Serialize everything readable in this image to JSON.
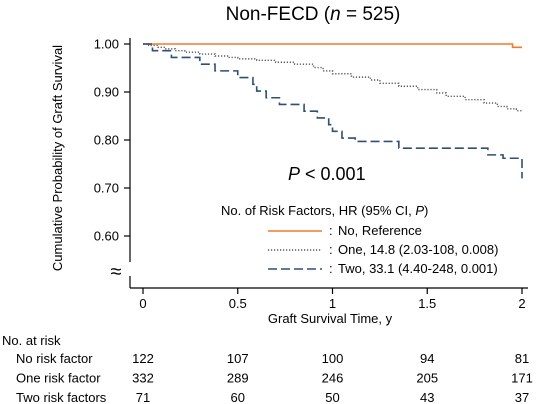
{
  "chart_data": {
    "type": "line",
    "subtype": "kaplan-meier",
    "title_prefix": "Non-FECD (",
    "title_n": "n",
    "title_suffix": " = 525)",
    "xlabel": "Graft Survival Time, y",
    "ylabel": "Cumulative Probability of Graft Survival",
    "xlim": [
      0,
      2
    ],
    "ylim": [
      0.55,
      1.0
    ],
    "xticks": [
      {
        "v": 0,
        "label": "0"
      },
      {
        "v": 0.5,
        "label": "0.5"
      },
      {
        "v": 1,
        "label": "1"
      },
      {
        "v": 1.5,
        "label": "1.5"
      },
      {
        "v": 2,
        "label": "2"
      }
    ],
    "yticks": [
      {
        "v": 1.0,
        "label": "1.00"
      },
      {
        "v": 0.9,
        "label": "0.90"
      },
      {
        "v": 0.8,
        "label": "0.80"
      },
      {
        "v": 0.7,
        "label": "0.70"
      },
      {
        "v": 0.6,
        "label": "0.60"
      }
    ],
    "axis_break_symbol": "≈",
    "p_label": "P",
    "p_rest": " < 0.001",
    "legend_title_prefix": "No. of Risk Factors, HR (95% CI, ",
    "legend_title_italic": "P",
    "legend_title_suffix": ")",
    "series": [
      {
        "name": "No, Reference",
        "color": "#f07c2a",
        "dash": "solid",
        "points": [
          [
            0,
            1.0
          ],
          [
            1.95,
            1.0
          ],
          [
            1.95,
            0.993
          ],
          [
            2.0,
            0.993
          ]
        ]
      },
      {
        "name": "One, 14.8 (2.03-108, 0.008)",
        "color": "#555555",
        "dash": "dotted",
        "points": [
          [
            0,
            1.0
          ],
          [
            0.03,
            0.997
          ],
          [
            0.08,
            0.993
          ],
          [
            0.12,
            0.99
          ],
          [
            0.17,
            0.986
          ],
          [
            0.22,
            0.983
          ],
          [
            0.3,
            0.979
          ],
          [
            0.38,
            0.975
          ],
          [
            0.45,
            0.972
          ],
          [
            0.5,
            0.969
          ],
          [
            0.6,
            0.966
          ],
          [
            0.7,
            0.962
          ],
          [
            0.8,
            0.958
          ],
          [
            0.9,
            0.951
          ],
          [
            0.95,
            0.944
          ],
          [
            1.0,
            0.938
          ],
          [
            1.1,
            0.931
          ],
          [
            1.2,
            0.925
          ],
          [
            1.25,
            0.918
          ],
          [
            1.35,
            0.912
          ],
          [
            1.45,
            0.905
          ],
          [
            1.55,
            0.898
          ],
          [
            1.6,
            0.891
          ],
          [
            1.7,
            0.884
          ],
          [
            1.8,
            0.877
          ],
          [
            1.87,
            0.87
          ],
          [
            1.92,
            0.865
          ],
          [
            1.97,
            0.861
          ],
          [
            2.0,
            0.86
          ]
        ]
      },
      {
        "name": "Two, 33.1 (4.40-248, 0.001)",
        "color": "#2f4f73",
        "dash": "dashed",
        "points": [
          [
            0,
            1.0
          ],
          [
            0.05,
            0.986
          ],
          [
            0.15,
            0.972
          ],
          [
            0.3,
            0.958
          ],
          [
            0.38,
            0.944
          ],
          [
            0.5,
            0.93
          ],
          [
            0.58,
            0.916
          ],
          [
            0.6,
            0.902
          ],
          [
            0.65,
            0.888
          ],
          [
            0.72,
            0.874
          ],
          [
            0.85,
            0.86
          ],
          [
            0.92,
            0.846
          ],
          [
            0.98,
            0.832
          ],
          [
            1.0,
            0.818
          ],
          [
            1.05,
            0.804
          ],
          [
            1.12,
            0.797
          ],
          [
            1.35,
            0.783
          ],
          [
            1.45,
            0.783
          ],
          [
            1.82,
            0.769
          ],
          [
            1.9,
            0.762
          ],
          [
            2.0,
            0.762
          ],
          [
            2.0,
            0.72
          ]
        ]
      }
    ],
    "risk_table": {
      "title": "No. at risk",
      "timepoints": [
        0,
        0.5,
        1,
        1.5,
        2
      ],
      "rows": [
        {
          "label": "No risk factor",
          "values": [
            "122",
            "107",
            "100",
            "94",
            "81"
          ]
        },
        {
          "label": "One risk factor",
          "values": [
            "332",
            "289",
            "246",
            "205",
            "171"
          ]
        },
        {
          "label": "Two risk factors",
          "values": [
            "71",
            "60",
            "50",
            "43",
            "37"
          ]
        }
      ]
    }
  }
}
